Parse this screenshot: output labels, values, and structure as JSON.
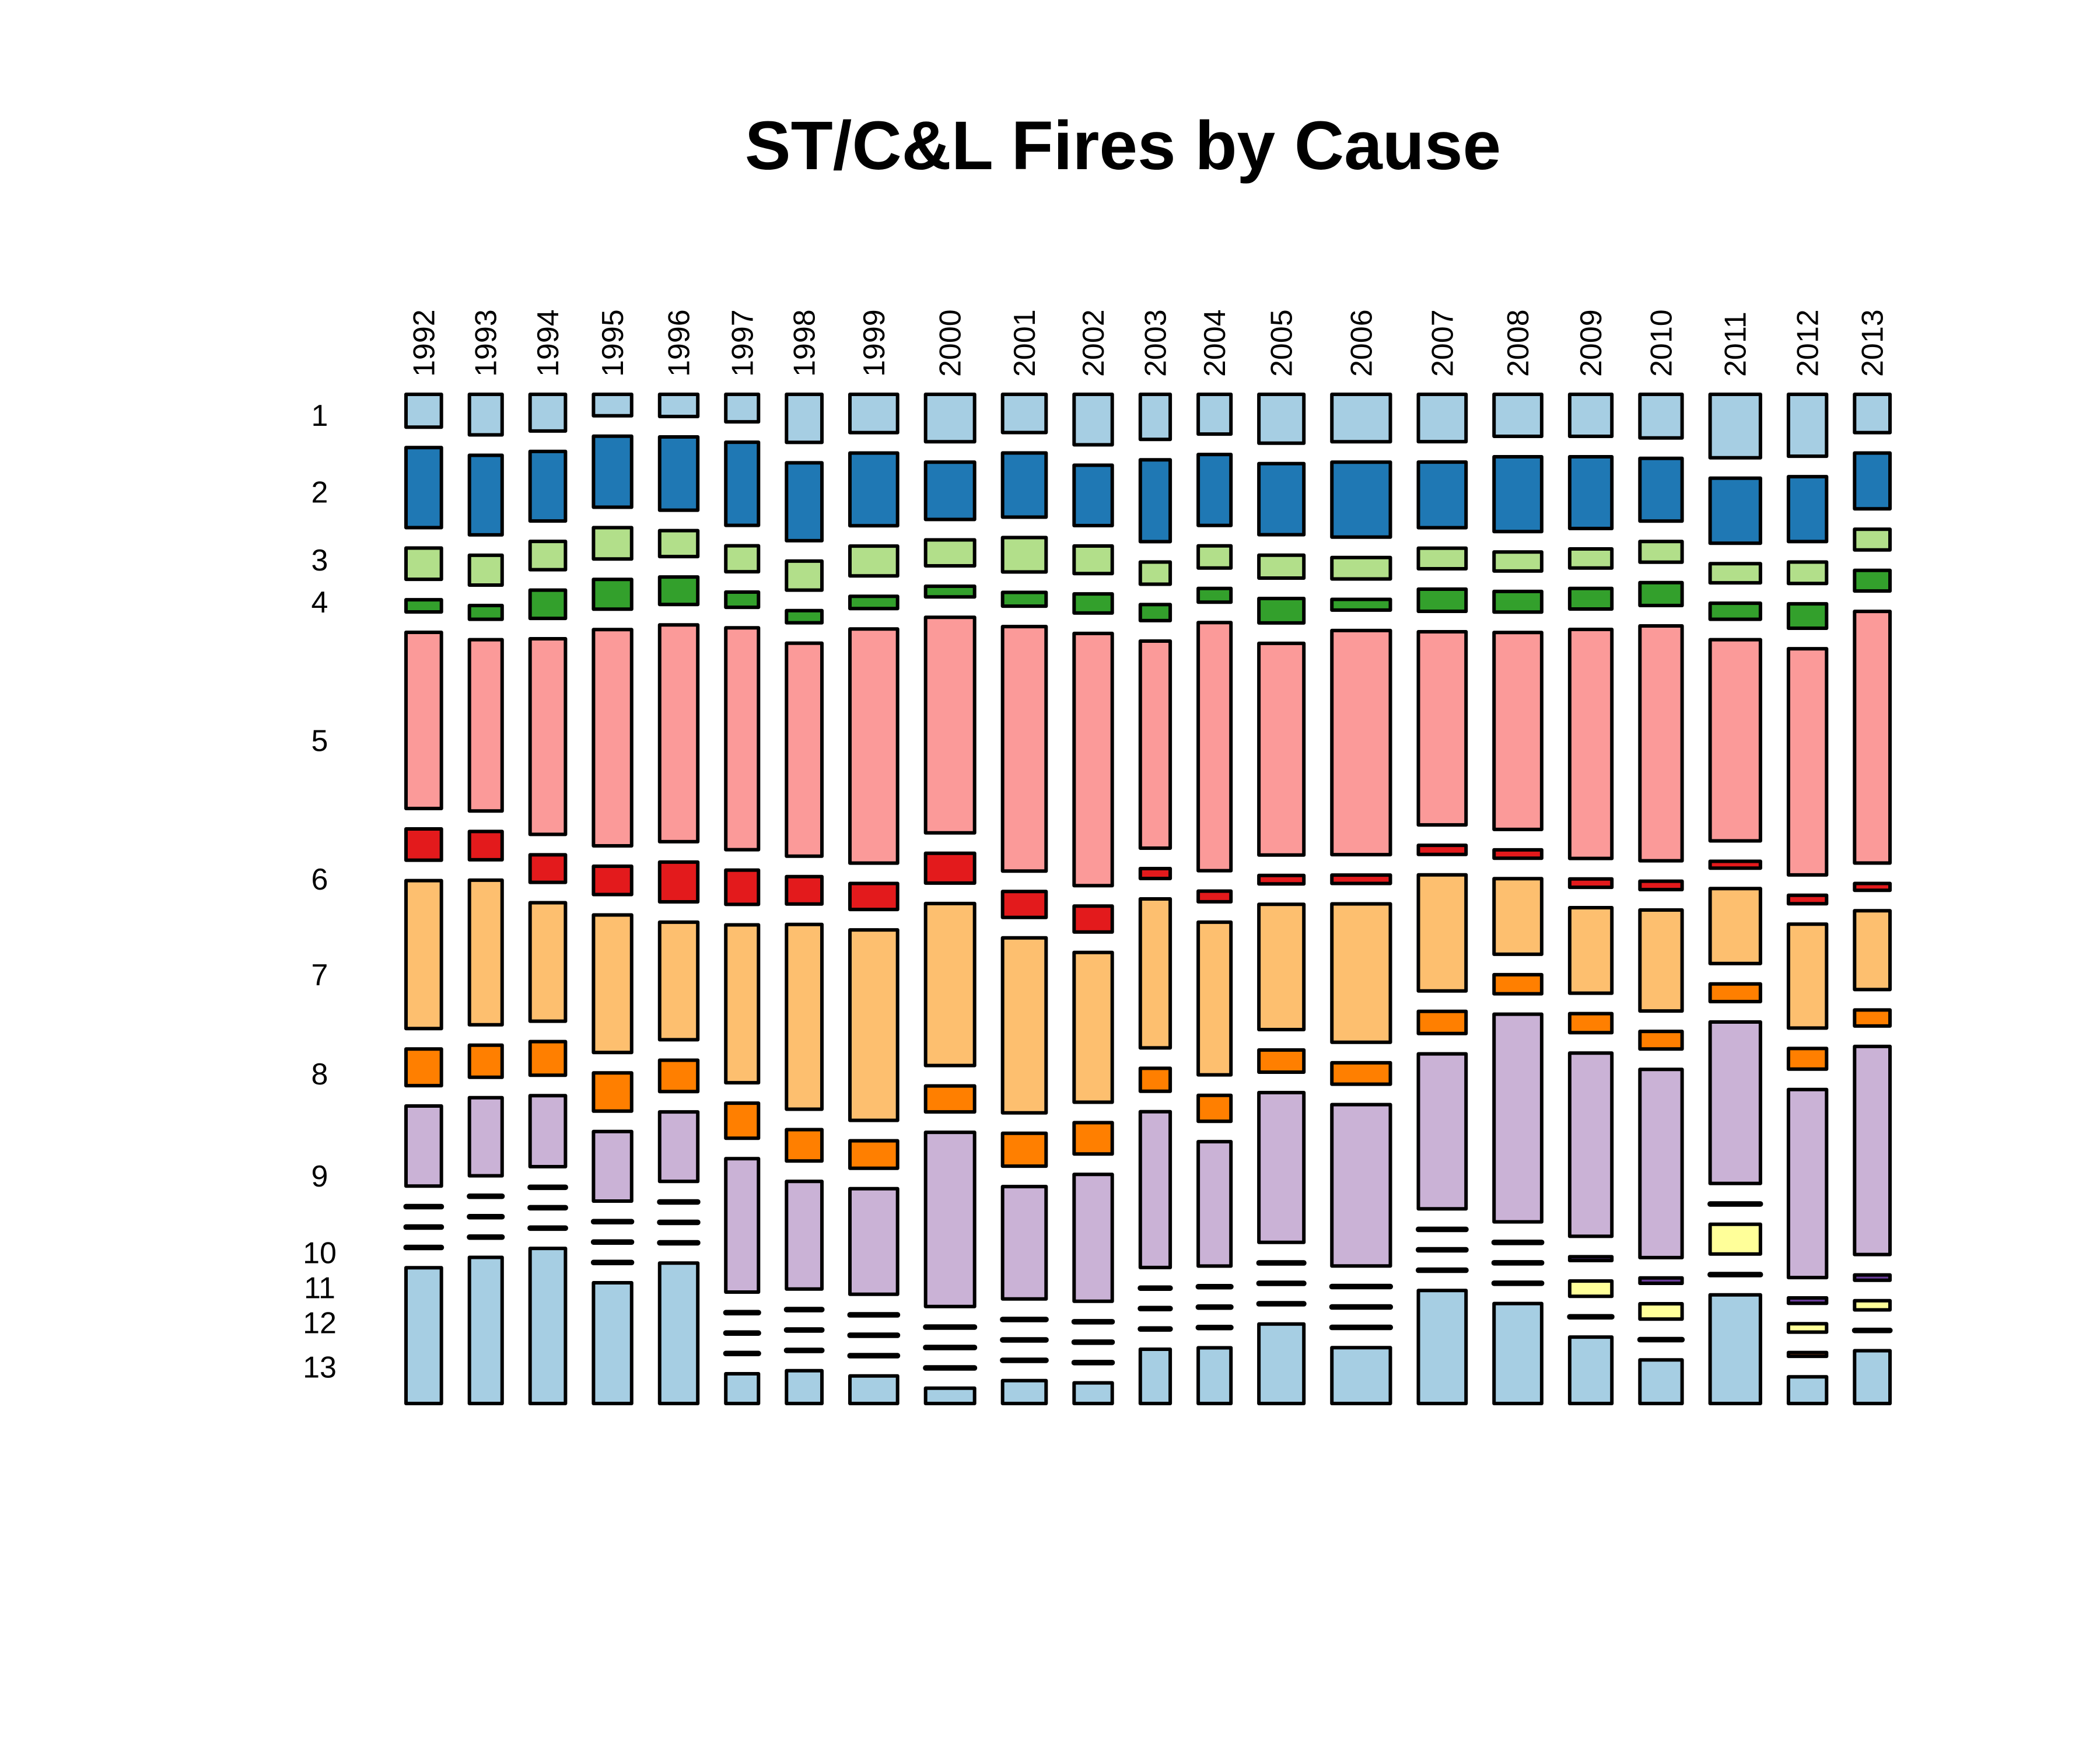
{
  "chart_data": {
    "type": "mosaic",
    "title": "ST/C&L Fires by Cause",
    "xlabel": "",
    "ylabel": "",
    "value_units": "percent of year's fires (segment heights); column widths = share of all fires across years (percent)",
    "categories": [
      "1",
      "2",
      "3",
      "4",
      "5",
      "6",
      "7",
      "8",
      "9",
      "10",
      "11",
      "12",
      "13"
    ],
    "category_colors": [
      "#A6CEE3",
      "#1F78B4",
      "#B2DF8A",
      "#33A02C",
      "#FB9A99",
      "#E31A1C",
      "#FDBF6F",
      "#FF7F00",
      "#CAB2D6",
      "#6A3D9A",
      "#FFFF99",
      "#B15928",
      "#A6CEE3"
    ],
    "years": [
      "1992",
      "1993",
      "1994",
      "1995",
      "1996",
      "1997",
      "1998",
      "1999",
      "2000",
      "2001",
      "2002",
      "2003",
      "2004",
      "2005",
      "2006",
      "2007",
      "2008",
      "2009",
      "2010",
      "2011",
      "2012",
      "2013"
    ],
    "year_share": [
      3.95,
      3.65,
      3.95,
      4.26,
      4.26,
      3.65,
      3.95,
      5.32,
      5.47,
      4.86,
      4.26,
      3.34,
      3.65,
      5.02,
      6.53,
      5.32,
      5.32,
      4.71,
      4.71,
      5.62,
      4.26,
      3.95
    ],
    "series": [
      {
        "year": "1992",
        "values": [
          4.3,
          10.5,
          4.1,
          1.6,
          23.1,
          4.1,
          19.4,
          4.8,
          10.5,
          0,
          0,
          0,
          17.8
        ]
      },
      {
        "year": "1993",
        "values": [
          5.3,
          10.4,
          3.9,
          1.8,
          22.4,
          3.7,
          18.9,
          4.2,
          10.2,
          0,
          0,
          0,
          19.1
        ]
      },
      {
        "year": "1994",
        "values": [
          4.8,
          9.1,
          3.7,
          3.7,
          25.6,
          3.6,
          15.5,
          4.4,
          9.3,
          0,
          0,
          0,
          20.3
        ]
      },
      {
        "year": "1995",
        "values": [
          2.8,
          9.3,
          4.1,
          3.9,
          28.3,
          3.7,
          18.0,
          5.0,
          9.1,
          0,
          0,
          0,
          15.8
        ]
      },
      {
        "year": "1996",
        "values": [
          2.9,
          9.6,
          3.4,
          3.6,
          28.4,
          5.2,
          15.4,
          4.1,
          9.1,
          0,
          0,
          0,
          18.4
        ]
      },
      {
        "year": "1997",
        "values": [
          3.6,
          10.9,
          3.4,
          2.0,
          29.1,
          4.5,
          20.7,
          4.6,
          17.5,
          0,
          0,
          0,
          3.9
        ]
      },
      {
        "year": "1998",
        "values": [
          6.3,
          10.2,
          3.8,
          1.6,
          27.9,
          3.6,
          24.2,
          4.1,
          14.1,
          0,
          0,
          0,
          4.3
        ]
      },
      {
        "year": "1999",
        "values": [
          5.0,
          9.5,
          3.9,
          1.6,
          30.6,
          3.4,
          24.9,
          3.6,
          13.8,
          0,
          0,
          0,
          3.6
        ]
      },
      {
        "year": "2000",
        "values": [
          6.2,
          7.5,
          3.4,
          1.4,
          28.2,
          3.9,
          21.2,
          3.4,
          22.8,
          0,
          0,
          0,
          2.0
        ]
      },
      {
        "year": "2001",
        "values": [
          5.0,
          8.4,
          4.5,
          1.8,
          32.0,
          3.4,
          22.9,
          4.3,
          14.7,
          0,
          0,
          0,
          3.0
        ]
      },
      {
        "year": "2002",
        "values": [
          6.6,
          7.9,
          3.6,
          2.5,
          33.0,
          3.4,
          19.6,
          4.1,
          16.6,
          0,
          0,
          0,
          2.7
        ]
      },
      {
        "year": "2003",
        "values": [
          5.9,
          10.7,
          2.9,
          2.1,
          27.1,
          1.3,
          19.5,
          3.0,
          20.4,
          0,
          0,
          0,
          7.1
        ]
      },
      {
        "year": "2004",
        "values": [
          5.2,
          9.3,
          2.9,
          1.8,
          32.5,
          1.4,
          20.0,
          3.4,
          16.3,
          0,
          0,
          0,
          7.3
        ]
      },
      {
        "year": "2005",
        "values": [
          6.4,
          9.3,
          3.0,
          3.2,
          27.7,
          1.1,
          16.4,
          2.9,
          19.6,
          0,
          0,
          0,
          10.4
        ]
      },
      {
        "year": "2006",
        "values": [
          6.2,
          9.8,
          2.8,
          1.4,
          29.3,
          1.1,
          18.1,
          2.8,
          21.1,
          0,
          0,
          0,
          7.3
        ]
      },
      {
        "year": "2007",
        "values": [
          6.2,
          8.6,
          2.7,
          2.9,
          25.3,
          1.2,
          15.2,
          2.9,
          20.3,
          0,
          0,
          0,
          14.8
        ]
      },
      {
        "year": "2008",
        "values": [
          5.5,
          9.8,
          2.5,
          2.7,
          25.8,
          1.1,
          9.9,
          2.5,
          27.2,
          0,
          0,
          0,
          13.1
        ]
      },
      {
        "year": "2009",
        "values": [
          5.5,
          9.4,
          2.5,
          2.7,
          30.0,
          1.1,
          11.2,
          2.5,
          24.0,
          0.5,
          2.0,
          0,
          8.7
        ]
      },
      {
        "year": "2010",
        "values": [
          5.7,
          8.2,
          2.7,
          3.0,
          30.7,
          1.1,
          13.2,
          2.3,
          24.6,
          0.7,
          2.0,
          0,
          5.7
        ]
      },
      {
        "year": "2011",
        "values": [
          8.3,
          8.5,
          2.5,
          2.1,
          26.3,
          0.9,
          9.8,
          2.3,
          21.1,
          0,
          3.9,
          0,
          14.2
        ]
      },
      {
        "year": "2012",
        "values": [
          8.1,
          8.5,
          2.8,
          3.2,
          29.6,
          1.1,
          13.6,
          2.7,
          24.6,
          0.7,
          1.1,
          0.5,
          3.5
        ]
      },
      {
        "year": "2013",
        "values": [
          5.0,
          7.3,
          2.7,
          2.7,
          32.9,
          0.9,
          10.3,
          2.1,
          27.2,
          0.7,
          1.2,
          0,
          6.9
        ]
      }
    ],
    "grid": false,
    "legend": "none"
  }
}
